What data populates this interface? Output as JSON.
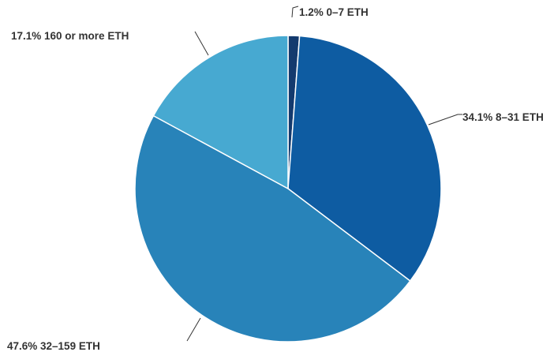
{
  "chart_data": {
    "type": "pie",
    "title": "",
    "slices": [
      {
        "label": "1.2% 0–7 ETH",
        "category": "0–7 ETH",
        "value": 1.2,
        "color": "#133a6e"
      },
      {
        "label": "34.1% 8–31 ETH",
        "category": "8–31 ETH",
        "value": 34.1,
        "color": "#0e5ca2"
      },
      {
        "label": "47.6% 32–159 ETH",
        "category": "32–159 ETH",
        "value": 47.6,
        "color": "#2883b9"
      },
      {
        "label": "17.1% 160 or more ETH",
        "category": "160 or more ETH",
        "value": 17.1,
        "color": "#47a9d1"
      }
    ],
    "start": "12 o'clock",
    "direction": "clockwise",
    "legend": "none",
    "labels": "outside with leader lines"
  }
}
